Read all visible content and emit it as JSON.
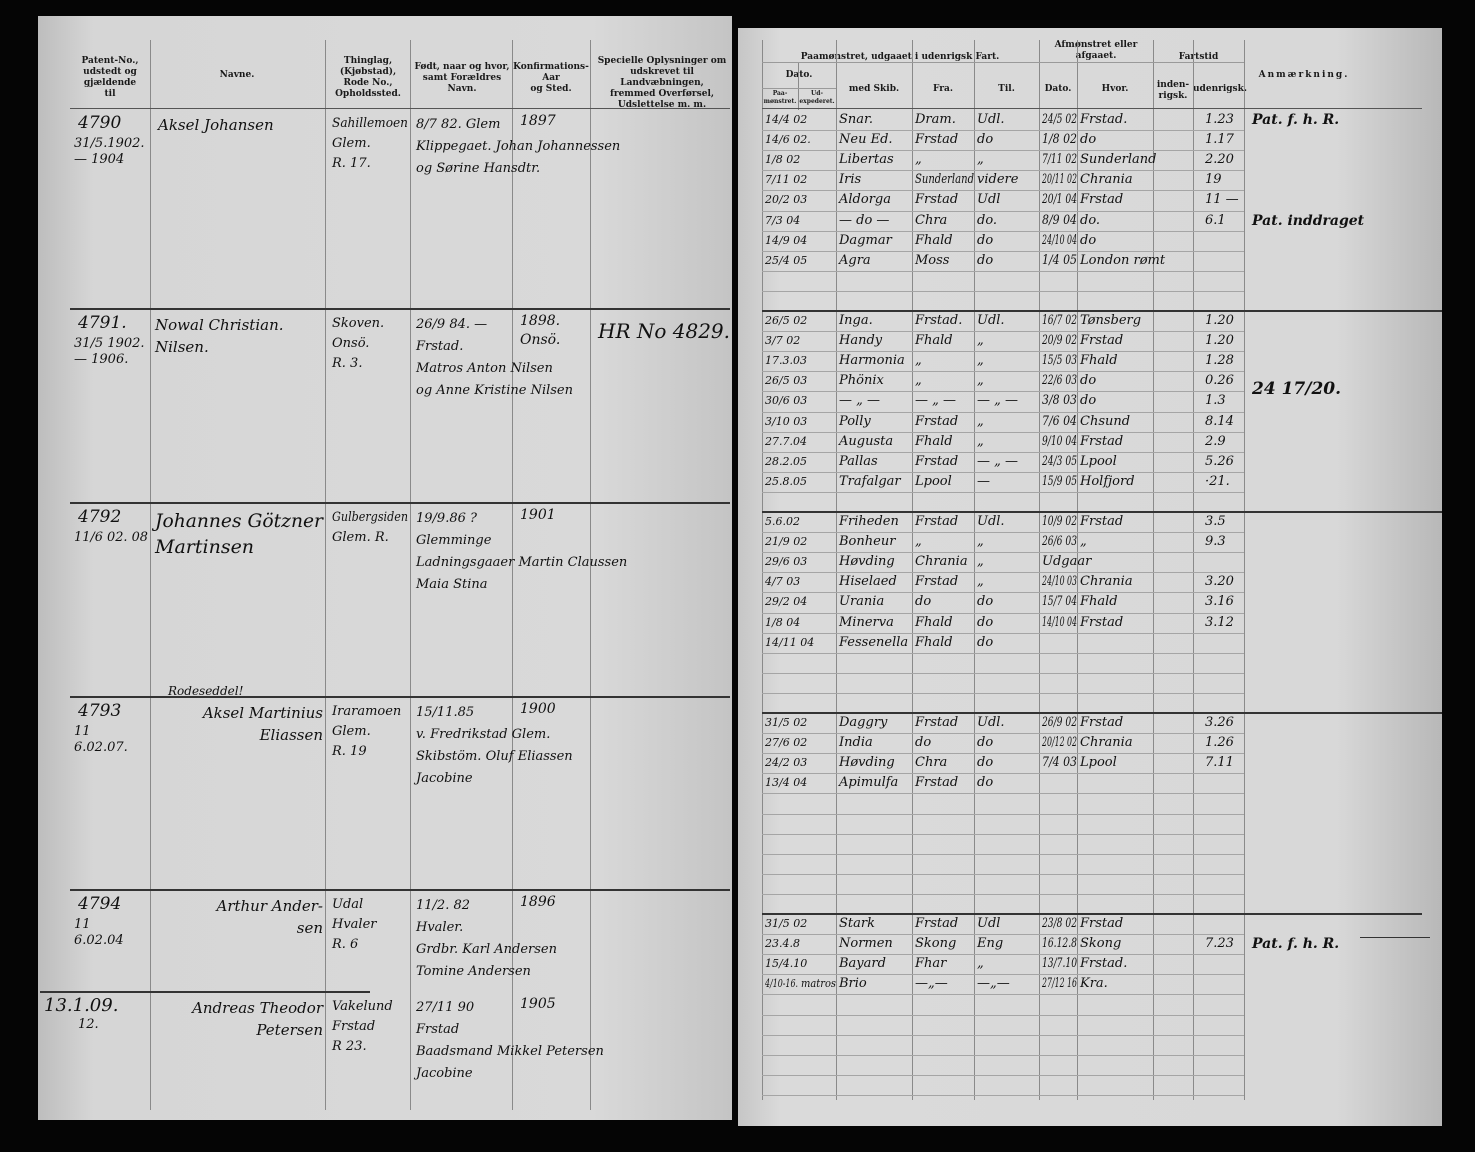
{
  "left_page": {
    "headers": {
      "patent": "Patent-No.,\nudstedt og\ngjældende\ntil",
      "name": "Navne.",
      "thinglag": "Thinglag,\n(Kjøbstad),\nRode No.,\nOpholdssted.",
      "born": "Født, naar og hvor,\nsamt Forældres\nNavn.",
      "konf": "Konfirmations-\nAar\nog Sted.",
      "special": "Specielle Oplysninger om\nudskrevet til Landvæbningen,\nfremmed Overførsel,\nUdslettelse m. m."
    },
    "entries": [
      {
        "no": "4790",
        "dates": "31/5.1902.\n— 1904",
        "name": "Aksel Johansen",
        "thinglag": "Sahillemoen\nGlem.\nR. 17.",
        "born": "8/7 82.  Glem\nKlippegaet. Johan Johannessen\nog Sørine Hansdtr.",
        "konf": "1897",
        "special": ""
      },
      {
        "no": "4791.",
        "dates": "31/5 1902.\n— 1906.",
        "name": "Nowal Christian.\nNilsen.",
        "thinglag": "Skoven.\nOnsö.\nR. 3.",
        "born": "26/9 84. —\nFrstad.\nMatros Anton Nilsen\nog Anne Kristine Nilsen",
        "konf": "1898.\nOnsö.",
        "special": "HR No 4829."
      },
      {
        "no": "4792",
        "dates": "11/6 02. 08",
        "name": "Johannes Götzner\nMartinsen",
        "thinglag": "Gulbergsiden\nGlem. R.",
        "born": "19/9.86 ?\nGlemminge\nLadningsgaaer Martin Claussen\nMaia Stina",
        "konf": "1901",
        "special": "",
        "note": "Rodeseddel!"
      },
      {
        "no": "4793",
        "dates": "11\n6.02.07.",
        "name": "Aksel Martinius\nEliassen",
        "thinglag": "Iraramoen\nGlem.\nR. 19",
        "born": "15/11.85\nv. Fredrikstad Glem.\nSkibstöm. Oluf Eliassen\nJacobine",
        "konf": "1900",
        "special": ""
      },
      {
        "no": "4794",
        "dates": "11\n6.02.04",
        "name": "Arthur Ander-\nsen",
        "thinglag": "Udal\nHvaler\nR. 6",
        "born": "11/2. 82\nHvaler.\nGrdbr. Karl Andersen\nTomine Andersen",
        "konf": "1896",
        "special": ""
      },
      {
        "no": "13.1.09.",
        "dates": "12.",
        "name": "Andreas Theodor\nPetersen",
        "thinglag": "Vakelund\nFrstad\nR 23.",
        "born": "27/11 90\nFrstad\nBaadsmand Mikkel Petersen\nJacobine",
        "konf": "1905",
        "special": ""
      }
    ]
  },
  "right_page": {
    "headers": {
      "signed_on": "Paamønstret, udgaaet i udenrigsk Fart.",
      "signed_off": "Afmønstret eller afgaaet.",
      "sea_time": "Fartstid",
      "date": "Dato.",
      "date_on": "Paa-\nmønstret.",
      "date_out": "Ud-\nexpederet.",
      "ship": "med Skib.",
      "from": "Fra.",
      "to": "Til.",
      "off_date": "Dato.",
      "where": "Hvor.",
      "domestic": "inden-\nrigsk.",
      "foreign": "udenrigsk.",
      "remark": "Anmærkning."
    },
    "groups": [
      {
        "start_row": 0,
        "rows": [
          [
            "14/4 02",
            "",
            "Snar.",
            "Dram.",
            "Udl.",
            "24/5 02",
            "Frstad.",
            "",
            "1.23"
          ],
          [
            "14/6 02.",
            "",
            "Neu Ed.",
            "Frstad",
            "do",
            "1/8 02",
            "do",
            "",
            "1.17"
          ],
          [
            "1/8 02",
            "",
            "Libertas",
            "„",
            "„",
            "7/11 02",
            "Sunderland",
            "",
            "2.20"
          ],
          [
            "7/11 02",
            "",
            "Iris",
            "Sunderland",
            "videre",
            "20/11 02",
            "Chrania",
            "",
            "19"
          ],
          [
            "20/2 03",
            "",
            "Aldorga",
            "Frstad",
            "Udl",
            "20/1 04",
            "Frstad",
            "",
            "11 —"
          ],
          [
            "7/3 04",
            "",
            "— do —",
            "Chra",
            "do.",
            "8/9 04",
            "do.",
            "",
            "6.1"
          ],
          [
            "14/9 04",
            "",
            "Dagmar",
            "Fhald",
            "do",
            "24/10 04",
            "do",
            "",
            ""
          ],
          [
            "25/4 05",
            "",
            "Agra",
            "Moss",
            "do",
            "1/4 05",
            "London rømt",
            "",
            ""
          ]
        ],
        "remarks": [
          {
            "row": 0,
            "text": "Pat. f. h. R."
          },
          {
            "row": 5,
            "text": "Pat. inddraget"
          }
        ]
      },
      {
        "start_row": 10,
        "rows": [
          [
            "26/5 02",
            "",
            "Inga.",
            "Frstad.",
            "Udl.",
            "16/7 02",
            "Tønsberg",
            "",
            "1.20"
          ],
          [
            "3/7 02",
            "",
            "Handy",
            "Fhald",
            "„",
            "20/9 02",
            "Frstad",
            "",
            "1.20"
          ],
          [
            "17.3.03",
            "",
            "Harmonia",
            "„",
            "„",
            "15/5 03",
            "Fhald",
            "",
            "1.28"
          ],
          [
            "26/5 03",
            "",
            "Phönix",
            "„",
            "„",
            "22/6 03",
            "do",
            "",
            "0.26"
          ],
          [
            "30/6 03",
            "",
            "— „ —",
            "— „ —",
            "— „ —",
            "3/8 03",
            "do",
            "",
            "1.3"
          ],
          [
            "3/10 03",
            "",
            "Polly",
            "Frstad",
            "„",
            "7/6 04",
            "Chsund",
            "",
            "8.14"
          ],
          [
            "27.7.04",
            "",
            "Augusta",
            "Fhald",
            "„",
            "9/10 04",
            "Frstad",
            "",
            "2.9"
          ],
          [
            "28.2.05",
            "",
            "Pallas",
            "Frstad",
            "— „ —",
            "24/3 05",
            "Lpool",
            "",
            "5.26"
          ],
          [
            "25.8.05",
            "",
            "Trafalgar",
            "Lpool",
            "—",
            "15/9 05",
            "Holfjord",
            "",
            "·21."
          ]
        ],
        "remarks": [
          {
            "row": 3,
            "text": "24 17/20."
          }
        ]
      },
      {
        "start_row": 20,
        "rows": [
          [
            "5.6.02",
            "",
            "Friheden",
            "Frstad",
            "Udl.",
            "10/9 02",
            "Frstad",
            "",
            "3.5"
          ],
          [
            "21/9 02",
            "",
            "Bonheur",
            "„",
            "„",
            "26/6 03",
            "„",
            "",
            "9.3"
          ],
          [
            "29/6 03",
            "",
            "Høvding",
            "Chrania",
            "„",
            "Udgaar",
            "",
            "",
            ""
          ],
          [
            "4/7 03",
            "",
            "Hiselaed",
            "Frstad",
            "„",
            "24/10 03",
            "Chrania",
            "",
            "3.20"
          ],
          [
            "29/2 04",
            "",
            "Urania",
            "do",
            "do",
            "15/7 04",
            "Fhald",
            "",
            "3.16"
          ],
          [
            "1/8 04",
            "",
            "Minerva",
            "Fhald",
            "do",
            "14/10 04",
            "Frstad",
            "",
            "3.12"
          ],
          [
            "14/11 04",
            "",
            "Fessenella",
            "Fhald",
            "do",
            "",
            "",
            "",
            ""
          ]
        ],
        "remarks": []
      },
      {
        "start_row": 30,
        "rows": [
          [
            "31/5 02",
            "",
            "Daggry",
            "Frstad",
            "Udl.",
            "26/9 02",
            "Frstad",
            "",
            "3.26"
          ],
          [
            "27/6 02",
            "",
            "India",
            "do",
            "do",
            "20/12 02",
            "Chrania",
            "",
            "1.26"
          ],
          [
            "24/2 03",
            "",
            "Høvding",
            "Chra",
            "do",
            "7/4 03",
            "Lpool",
            "",
            "7.11"
          ],
          [
            "13/4 04",
            "",
            "Apimulfa",
            "Frstad",
            "do",
            "",
            "",
            "",
            ""
          ]
        ],
        "remarks": []
      },
      {
        "start_row": 40,
        "rows": [
          [
            "31/5 02",
            "",
            "Stark",
            "Frstad",
            "Udl",
            "23/8 02",
            "Frstad",
            "",
            ""
          ],
          [
            "23.4.8",
            "",
            "Normen",
            "Skong",
            "Eng",
            "16.12.8",
            "Skong",
            "",
            "7.23"
          ],
          [
            "15/4.10",
            "",
            "Bayard",
            "Fhar",
            "„",
            "13/7.10",
            "Frstad.",
            "",
            ""
          ],
          [
            "4/10-16.",
            "matros",
            "Brio",
            "—„—",
            "—„—",
            "27/12 16",
            "Kra.",
            "",
            ""
          ]
        ],
        "remarks": [
          {
            "row": 1,
            "text": "Pat. f. h. R."
          }
        ]
      }
    ]
  },
  "colors": {
    "paper": "#d8d8d8",
    "ink": "#111111",
    "background": "#050505"
  }
}
